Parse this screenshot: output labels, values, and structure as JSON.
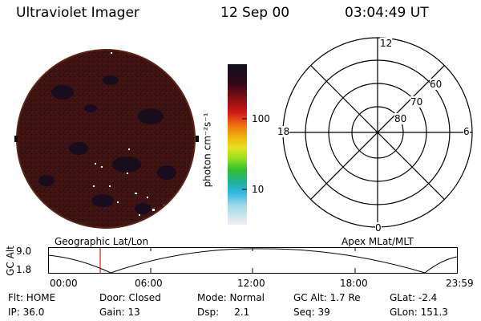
{
  "header": {
    "title": "Ultraviolet Imager",
    "date": "12 Sep 00",
    "time": "03:04:49 UT"
  },
  "colorbar": {
    "unit_label": "photon cm⁻²s⁻¹",
    "tick_100": "100",
    "tick_10": "10"
  },
  "polar_plot": {
    "label_12": "12",
    "label_0": "0",
    "label_18": "18",
    "label_6": "6",
    "label_60": "60",
    "label_70": "70",
    "label_80": "80"
  },
  "projection": {
    "left_label": "Geographic Lat/Lon",
    "right_label": "Apex MLat/MLT"
  },
  "altitude_panel": {
    "axis_label": "GC Alt",
    "y_top": "9.0",
    "y_bottom": "1.8",
    "x_ticks": [
      "00:00",
      "06:00",
      "12:00",
      "18:00",
      "23:59"
    ]
  },
  "footer": {
    "flt": "Flt: HOME",
    "door": "Door: Closed",
    "mode": "Mode: Normal",
    "gc_alt": "GC Alt: 1.7 Re",
    "glat": "GLat:  -2.4",
    "ip": "IP: 36.0",
    "gain": "Gain: 13",
    "dsp": "Dsp:     2.1",
    "seq": "Seq: 39",
    "glon": "GLon: 151.3"
  },
  "colors": {
    "disk_bg": "#3a1010",
    "colorbar_top": "#10101e",
    "colorbar_mid": "#e05010",
    "colorbar_low": "#40c060",
    "marker": "#c02010"
  }
}
